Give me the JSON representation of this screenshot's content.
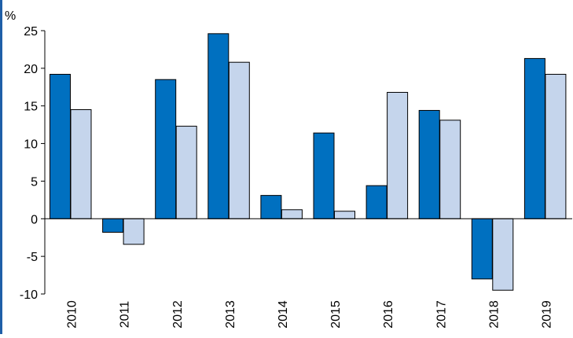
{
  "colors": {
    "series_1": "#0070c0",
    "series_2": "#c5d5ec",
    "bar_outline": "#000000",
    "border_accent": "#1f5fa8"
  },
  "chart_data": {
    "type": "bar",
    "title": "",
    "xlabel": "",
    "ylabel": "%",
    "ylim": [
      -10,
      25
    ],
    "yticks": [
      -10,
      -5,
      0,
      5,
      10,
      15,
      20,
      25
    ],
    "grid": false,
    "legend": "none",
    "categories": [
      "2010",
      "2011",
      "2012",
      "2013",
      "2014",
      "2015",
      "2016",
      "2017",
      "2018",
      "2019"
    ],
    "series": [
      {
        "values": [
          19.2,
          -1.8,
          18.5,
          24.6,
          3.1,
          11.4,
          4.4,
          14.4,
          -8.0,
          21.3
        ]
      },
      {
        "values": [
          14.5,
          -3.4,
          12.3,
          20.8,
          1.2,
          1.0,
          16.8,
          13.1,
          -9.5,
          19.2
        ]
      }
    ]
  }
}
